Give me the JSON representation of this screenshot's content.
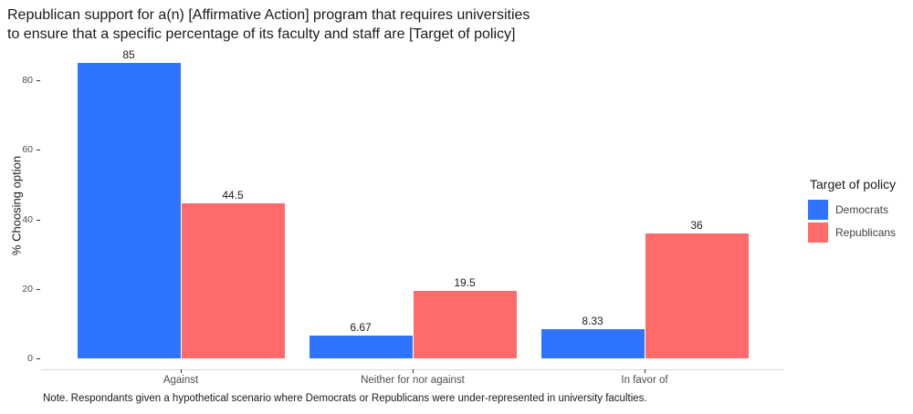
{
  "title": {
    "line1": "Republican support for a(n) [Affirmative Action] program that requires universities",
    "line2": "to ensure that a specific percentage of its faculty and staff are [Target of policy]"
  },
  "note": "Note. Respondants given a hypothetical scenario where Democrats or Republicans were under-represented in university faculties.",
  "legend": {
    "title": "Target of policy",
    "items": [
      {
        "label": "Democrats",
        "color": "#2E74FF"
      },
      {
        "label": "Republicans",
        "color": "#FF6B6B"
      }
    ]
  },
  "colors": {
    "democrats": "#2E74FF",
    "republicans": "#FF6B6B",
    "axis_line": "#d9d9d9",
    "tick_text": "#4d4d4d"
  },
  "chart_data": {
    "type": "bar",
    "title": "Republican support for a(n) [Affirmative Action] program that requires universities to ensure that a specific percentage of its faculty and staff are [Target of policy]",
    "categories": [
      "Against",
      "Neither for nor against",
      "In favor of"
    ],
    "series": [
      {
        "name": "Democrats",
        "color": "#2E74FF",
        "values": [
          85,
          6.67,
          8.33
        ],
        "labels": [
          "85",
          "6.67",
          "8.33"
        ]
      },
      {
        "name": "Republicans",
        "color": "#FF6B6B",
        "values": [
          44.5,
          19.5,
          36
        ],
        "labels": [
          "44.5",
          "19.5",
          "36"
        ]
      }
    ],
    "xlabel": "",
    "ylabel": "% Choosing option",
    "ylim": [
      0,
      88
    ],
    "yticks": [
      0,
      20,
      40,
      60,
      80
    ],
    "grid": false,
    "background": "#ffffff",
    "legend_position": "right",
    "bar_value_labels": true
  }
}
